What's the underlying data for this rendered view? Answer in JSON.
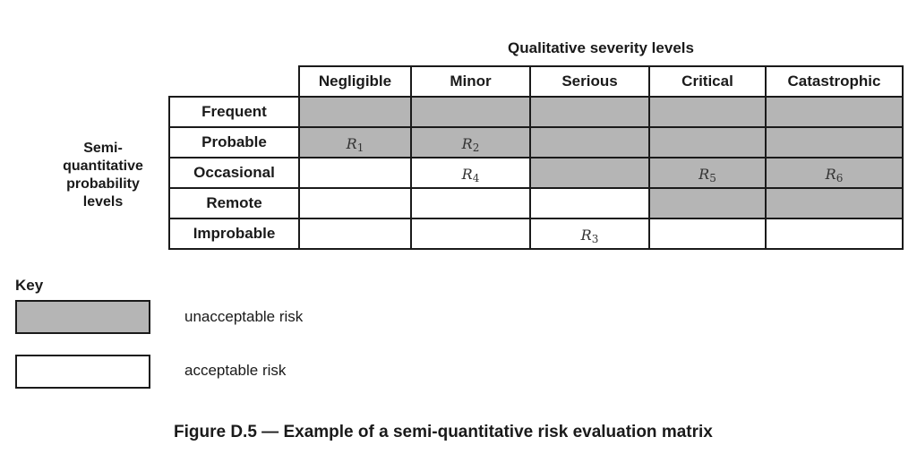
{
  "matrix": {
    "column_title": "Qualitative severity levels",
    "row_title_lines": [
      "Semi-",
      "quantitative",
      "probability",
      "levels"
    ],
    "columns": [
      "Negligible",
      "Minor",
      "Serious",
      "Critical",
      "Catastrophic"
    ],
    "rows": [
      {
        "label": "Frequent",
        "cells": [
          {
            "risk": "unacceptable",
            "text": "",
            "sub": ""
          },
          {
            "risk": "unacceptable",
            "text": "",
            "sub": ""
          },
          {
            "risk": "unacceptable",
            "text": "",
            "sub": ""
          },
          {
            "risk": "unacceptable",
            "text": "",
            "sub": ""
          },
          {
            "risk": "unacceptable",
            "text": "",
            "sub": ""
          }
        ]
      },
      {
        "label": "Probable",
        "cells": [
          {
            "risk": "unacceptable",
            "text": "R",
            "sub": "1"
          },
          {
            "risk": "unacceptable",
            "text": "R",
            "sub": "2"
          },
          {
            "risk": "unacceptable",
            "text": "",
            "sub": ""
          },
          {
            "risk": "unacceptable",
            "text": "",
            "sub": ""
          },
          {
            "risk": "unacceptable",
            "text": "",
            "sub": ""
          }
        ]
      },
      {
        "label": "Occasional",
        "cells": [
          {
            "risk": "acceptable",
            "text": "",
            "sub": ""
          },
          {
            "risk": "acceptable",
            "text": "R",
            "sub": "4"
          },
          {
            "risk": "unacceptable",
            "text": "",
            "sub": ""
          },
          {
            "risk": "unacceptable",
            "text": "R",
            "sub": "5"
          },
          {
            "risk": "unacceptable",
            "text": "R",
            "sub": "6"
          }
        ]
      },
      {
        "label": "Remote",
        "cells": [
          {
            "risk": "acceptable",
            "text": "",
            "sub": ""
          },
          {
            "risk": "acceptable",
            "text": "",
            "sub": ""
          },
          {
            "risk": "acceptable",
            "text": "",
            "sub": ""
          },
          {
            "risk": "unacceptable",
            "text": "",
            "sub": ""
          },
          {
            "risk": "unacceptable",
            "text": "",
            "sub": ""
          }
        ]
      },
      {
        "label": "Improbable",
        "cells": [
          {
            "risk": "acceptable",
            "text": "",
            "sub": ""
          },
          {
            "risk": "acceptable",
            "text": "",
            "sub": ""
          },
          {
            "risk": "acceptable",
            "text": "R",
            "sub": "3"
          },
          {
            "risk": "acceptable",
            "text": "",
            "sub": ""
          },
          {
            "risk": "acceptable",
            "text": "",
            "sub": ""
          }
        ]
      }
    ]
  },
  "key": {
    "title": "Key",
    "unacceptable_label": "unacceptable risk",
    "acceptable_label": "acceptable risk"
  },
  "colors": {
    "unacceptable_fill": "#b5b5b5",
    "acceptable_fill": "#ffffff",
    "border": "#1a1a1a"
  },
  "caption": "Figure D.5 — Example of a semi-quantitative risk evaluation matrix"
}
